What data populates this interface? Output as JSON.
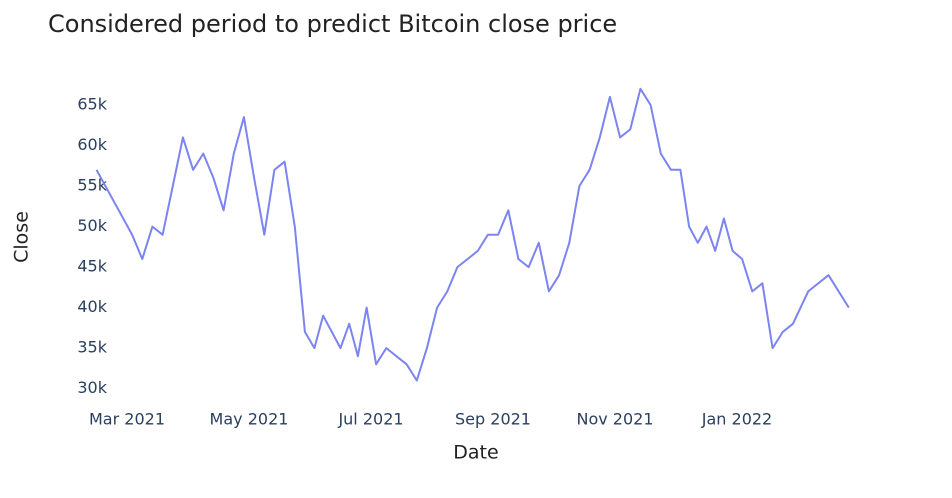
{
  "chart_data": {
    "type": "line",
    "title": "Considered period to predict Bitcoin close price",
    "x_label": "Date",
    "y_label": "Close",
    "x": [
      "2021-02",
      "2021-03",
      "2021-03",
      "2021-03",
      "2021-03",
      "2021-03",
      "2021-03",
      "2021-04",
      "2021-04",
      "2021-04",
      "2021-04",
      "2021-04",
      "2021-04",
      "2021-05",
      "2021-05",
      "2021-05",
      "2021-05",
      "2021-05",
      "2021-05",
      "2021-06",
      "2021-06",
      "2021-06",
      "2021-06",
      "2021-06",
      "2021-06",
      "2021-06",
      "2021-07",
      "2021-07",
      "2021-07",
      "2021-07",
      "2021-07",
      "2021-07",
      "2021-08",
      "2021-08",
      "2021-08",
      "2021-08",
      "2021-08",
      "2021-08",
      "2021-09",
      "2021-09",
      "2021-09",
      "2021-09",
      "2021-09",
      "2021-09",
      "2021-10",
      "2021-10",
      "2021-10",
      "2021-10",
      "2021-10",
      "2021-10",
      "2021-11",
      "2021-11",
      "2021-11",
      "2021-11",
      "2021-11",
      "2021-11",
      "2021-12",
      "2021-12",
      "2021-12",
      "2021-12",
      "2021-12",
      "2021-12",
      "2021-12",
      "2022-01",
      "2022-01",
      "2022-01",
      "2022-01",
      "2022-01",
      "2022-01",
      "2022-02",
      "2022-02",
      "2022-02"
    ],
    "values": [
      57000,
      49000,
      46000,
      50000,
      49000,
      55000,
      61000,
      57000,
      59000,
      56000,
      52000,
      59000,
      63500,
      56000,
      49000,
      57000,
      58000,
      50000,
      37000,
      35000,
      39000,
      37000,
      35000,
      38000,
      34000,
      40000,
      33000,
      35000,
      34000,
      33000,
      31000,
      35000,
      40000,
      42000,
      45000,
      46000,
      47000,
      49000,
      49000,
      52000,
      46000,
      45000,
      48000,
      42000,
      44000,
      48000,
      55000,
      57000,
      61000,
      66000,
      61000,
      62000,
      67000,
      65000,
      59000,
      57000,
      57000,
      50000,
      48000,
      50000,
      47000,
      51000,
      47000,
      46000,
      42000,
      43000,
      35000,
      37000,
      38000,
      42000,
      44000,
      40000
    ],
    "color": "#7b84f0",
    "ylim": [
      28600,
      68700
    ],
    "yticks": [
      {
        "value": 30000,
        "label": "30k"
      },
      {
        "value": 35000,
        "label": "35k"
      },
      {
        "value": 40000,
        "label": "40k"
      },
      {
        "value": 45000,
        "label": "45k"
      },
      {
        "value": 50000,
        "label": "50k"
      },
      {
        "value": 55000,
        "label": "55k"
      },
      {
        "value": 60000,
        "label": "60k"
      },
      {
        "value": 65000,
        "label": "65k"
      }
    ],
    "xticks": [
      {
        "value": "2021-03",
        "label": "Mar 2021"
      },
      {
        "value": "2021-05",
        "label": "May 2021"
      },
      {
        "value": "2021-07",
        "label": "Jul 2021"
      },
      {
        "value": "2021-09",
        "label": "Sep 2021"
      },
      {
        "value": "2021-11",
        "label": "Nov 2021"
      },
      {
        "value": "2022-01",
        "label": "Jan 2022"
      }
    ]
  }
}
